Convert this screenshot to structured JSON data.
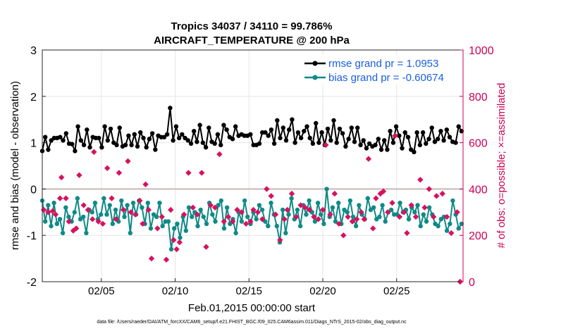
{
  "chart_data": {
    "type": "line",
    "title_line1": "Tropics 34037 / 34110 = 99.786%",
    "title_line2": "AIRCRAFT_TEMPERATURE @ 200 hPa",
    "xlabel": "Feb.01,2015 00:00:00 start",
    "ylabel_left": "rmse and bias (model - observation)",
    "ylabel_right": "# of obs: o=possible; ×=assimilated",
    "footnote": "data file: /Users/raeder/DAI/ATM_forcXX/CAM6_setup/f.e21.FHIST_BGC.f09_025.CAM6assim.011/Diags_NTrS_2015-02/obs_diag_output.nc",
    "x_range_days": [
      1,
      29.5
    ],
    "x_ticks": [
      {
        "day": 5,
        "label": "02/05"
      },
      {
        "day": 10,
        "label": "02/10"
      },
      {
        "day": 15,
        "label": "02/15"
      },
      {
        "day": 20,
        "label": "02/20"
      },
      {
        "day": 25,
        "label": "02/25"
      }
    ],
    "ylim_left": [
      -2,
      3
    ],
    "yticks_left": [
      "-2",
      "-1",
      "0",
      "1",
      "2",
      "3"
    ],
    "ylim_right": [
      0,
      1000
    ],
    "yticks_right": [
      "0",
      "200",
      "400",
      "600",
      "800",
      "1000"
    ],
    "grid": true,
    "zero_line": 0,
    "legend_position": "top-right",
    "colors": {
      "rmse": "#000000",
      "bias": "#0e8a87",
      "obs": "#d6125e",
      "right_axis": "#cc0055",
      "legend_text": "#1a5fe0",
      "zero_line": "#c8b8b8"
    },
    "series": [
      {
        "name": "rmse grand pr = 1.0953",
        "color": "#000000",
        "values": [
          0.82,
          1.12,
          0.85,
          1.05,
          1.1,
          1.1,
          1.12,
          1.05,
          1.2,
          0.98,
          0.97,
          0.82,
          1.35,
          1.05,
          0.95,
          1.28,
          0.9,
          1.12,
          1.1,
          1.1,
          0.9,
          1.35,
          1.05,
          1.3,
          1.0,
          0.95,
          1.32,
          0.92,
          0.95,
          1.15,
          0.95,
          1.18,
          0.92,
          1.22,
          1.1,
          0.9,
          1.08,
          1.2,
          0.85,
          1.15,
          1.12,
          1.12,
          1.18,
          1.75,
          1.05,
          1.35,
          1.1,
          1.18,
          1.1,
          1.05,
          0.98,
          1.25,
          1.02,
          1.38,
          1.0,
          0.9,
          1.32,
          1.02,
          0.98,
          1.18,
          0.95,
          1.38,
          1.28,
          1.12,
          1.08,
          1.35,
          1.15,
          1.18,
          1.15,
          1.15,
          1.18,
          0.95,
          0.95,
          0.98,
          1.22,
          1.22,
          1.15,
          1.28,
          0.98,
          1.48,
          1.1,
          1.32,
          1.05,
          1.28,
          1.5,
          1.0,
          1.22,
          1.1,
          1.25,
          1.35,
          1.1,
          0.98,
          1.42,
          1.0,
          1.22,
          0.95,
          1.3,
          1.05,
          1.48,
          1.0,
          1.3,
          1.2,
          0.92,
          1.08,
          1.32,
          1.02,
          1.32,
          0.95,
          1.05,
          0.88,
          0.98,
          0.92,
          0.95,
          1.08,
          0.85,
          1.05,
          0.85,
          1.25,
          1.0,
          1.35,
          1.15,
          0.88,
          1.22,
          1.12,
          0.85,
          0.8,
          1.22,
          0.95,
          1.22,
          0.98,
          1.08,
          1.32,
          1.02,
          1.08,
          1.25,
          1.05,
          1.28,
          1.12,
          1.02,
          1.0,
          1.35,
          1.25
        ]
      },
      {
        "name": "bias grand pr = -0.60674",
        "color": "#0e8a87",
        "values": [
          -0.25,
          -0.7,
          -0.35,
          -0.8,
          -0.3,
          -0.75,
          -0.65,
          -0.95,
          -0.4,
          -0.6,
          -0.7,
          -0.5,
          -0.2,
          -0.65,
          -0.6,
          -0.95,
          -0.45,
          -0.5,
          -0.3,
          -0.65,
          -0.55,
          -0.2,
          -0.55,
          -0.35,
          -0.75,
          -0.45,
          -0.7,
          -0.25,
          -0.6,
          -0.35,
          -0.95,
          -0.3,
          -0.55,
          -0.25,
          -0.4,
          -0.75,
          -0.3,
          -0.85,
          -0.55,
          -0.6,
          -0.3,
          -0.8,
          -0.7,
          -0.7,
          -1.3,
          -0.85,
          -0.75,
          -1.05,
          -0.6,
          -0.9,
          -0.4,
          -0.6,
          -0.5,
          -0.8,
          -0.45,
          -0.6,
          -0.75,
          -0.3,
          -0.55,
          -0.7,
          -0.35,
          -0.25,
          -0.85,
          -0.4,
          -0.75,
          -0.65,
          -0.95,
          -0.5,
          -0.7,
          -0.25,
          -0.6,
          -0.75,
          -0.5,
          -0.65,
          -0.35,
          -0.45,
          -0.7,
          -0.8,
          -0.3,
          -0.55,
          -0.8,
          -1.15,
          -0.45,
          -0.95,
          -0.55,
          -0.2,
          -0.65,
          -0.45,
          -0.8,
          -0.35,
          -0.55,
          -0.25,
          -0.5,
          -0.7,
          -0.3,
          -0.55,
          -0.75,
          0.0,
          -0.6,
          -0.4,
          -0.7,
          -0.3,
          -0.75,
          -0.45,
          -0.5,
          -0.25,
          -0.6,
          -0.8,
          -0.35,
          -0.55,
          -0.65,
          -0.2,
          -0.45,
          -0.4,
          -0.65,
          -0.6,
          -0.35,
          -0.7,
          -0.5,
          -0.45,
          -0.55,
          -0.55,
          -0.3,
          -0.5,
          -0.45,
          -0.65,
          -0.4,
          -0.5,
          -0.35,
          -0.8,
          -0.55,
          -0.7,
          -0.4,
          -0.55,
          -0.75,
          -0.8,
          -0.65,
          -0.6,
          -0.9,
          -0.75,
          -0.25,
          -0.55,
          -0.85,
          -0.75
        ]
      }
    ],
    "obs_points": [
      [
        1.1,
        310
      ],
      [
        1.4,
        300
      ],
      [
        1.7,
        305
      ],
      [
        1.9,
        290
      ],
      [
        2.2,
        360
      ],
      [
        2.3,
        450
      ],
      [
        2.6,
        360
      ],
      [
        2.8,
        260
      ],
      [
        3.1,
        220
      ],
      [
        3.3,
        230
      ],
      [
        3.5,
        460
      ],
      [
        3.8,
        330
      ],
      [
        4.1,
        310
      ],
      [
        4.4,
        270
      ],
      [
        4.5,
        560
      ],
      [
        4.8,
        260
      ],
      [
        5.1,
        250
      ],
      [
        5.4,
        490
      ],
      [
        5.7,
        360
      ],
      [
        6.0,
        270
      ],
      [
        6.2,
        470
      ],
      [
        6.5,
        310
      ],
      [
        6.8,
        520
      ],
      [
        7.0,
        300
      ],
      [
        7.3,
        290
      ],
      [
        7.6,
        350
      ],
      [
        7.8,
        250
      ],
      [
        8.0,
        420
      ],
      [
        8.2,
        310
      ],
      [
        8.4,
        100
      ],
      [
        8.8,
        230
      ],
      [
        9.1,
        280
      ],
      [
        9.4,
        95
      ],
      [
        9.7,
        310
      ],
      [
        9.9,
        180
      ],
      [
        10.1,
        140
      ],
      [
        10.3,
        170
      ],
      [
        10.6,
        290
      ],
      [
        10.9,
        470
      ],
      [
        11.2,
        320
      ],
      [
        11.5,
        290
      ],
      [
        11.8,
        470
      ],
      [
        12.1,
        150
      ],
      [
        12.4,
        330
      ],
      [
        12.7,
        320
      ],
      [
        13.0,
        550
      ],
      [
        13.3,
        260
      ],
      [
        13.6,
        280
      ],
      [
        13.9,
        260
      ],
      [
        14.2,
        310
      ],
      [
        14.5,
        300
      ],
      [
        14.8,
        250
      ],
      [
        15.1,
        260
      ],
      [
        15.3,
        310
      ],
      [
        15.6,
        300
      ],
      [
        15.9,
        270
      ],
      [
        16.2,
        400
      ],
      [
        16.5,
        370
      ],
      [
        16.8,
        290
      ],
      [
        17.1,
        180
      ],
      [
        17.4,
        270
      ],
      [
        17.6,
        310
      ],
      [
        17.9,
        380
      ],
      [
        18.2,
        280
      ],
      [
        18.5,
        330
      ],
      [
        18.8,
        320
      ],
      [
        19.1,
        310
      ],
      [
        19.4,
        280
      ],
      [
        19.7,
        270
      ],
      [
        20.0,
        310
      ],
      [
        20.2,
        590
      ],
      [
        20.5,
        290
      ],
      [
        20.8,
        380
      ],
      [
        21.1,
        250
      ],
      [
        21.4,
        200
      ],
      [
        21.7,
        280
      ],
      [
        22.0,
        260
      ],
      [
        22.3,
        270
      ],
      [
        22.6,
        300
      ],
      [
        22.8,
        270
      ],
      [
        23.1,
        530
      ],
      [
        23.4,
        230
      ],
      [
        23.6,
        360
      ],
      [
        23.9,
        380
      ],
      [
        24.1,
        390
      ],
      [
        24.4,
        300
      ],
      [
        24.7,
        340
      ],
      [
        24.9,
        630
      ],
      [
        25.2,
        280
      ],
      [
        25.5,
        300
      ],
      [
        25.7,
        210
      ],
      [
        26.0,
        330
      ],
      [
        26.3,
        280
      ],
      [
        26.6,
        440
      ],
      [
        26.9,
        320
      ],
      [
        27.2,
        400
      ],
      [
        27.5,
        280
      ],
      [
        27.7,
        370
      ],
      [
        28.1,
        380
      ],
      [
        28.4,
        280
      ],
      [
        28.7,
        210
      ],
      [
        29.1,
        300
      ],
      [
        29.3,
        0
      ]
    ]
  },
  "legend": {
    "rmse_label": "rmse grand pr = 1.0953",
    "bias_label": "bias grand pr = -0.60674"
  }
}
